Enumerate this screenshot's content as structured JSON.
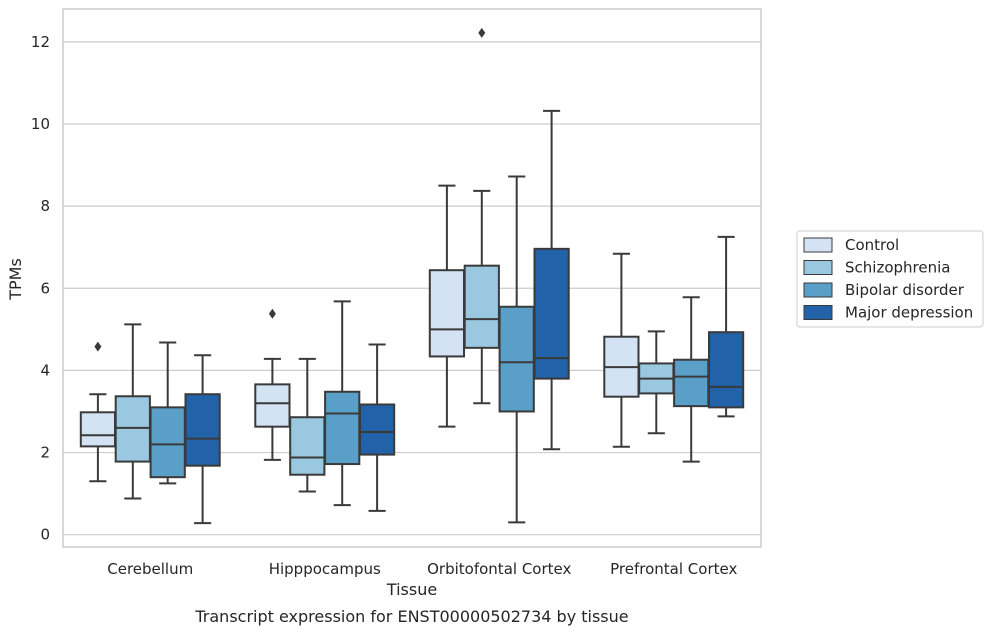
{
  "chart_data": {
    "type": "box",
    "xlabel": "Tissue",
    "ylabel": "TPMs",
    "caption": "Transcript expression for ENST00000502734 by tissue",
    "ylim": [
      -0.3,
      12.8
    ],
    "yticks": [
      0,
      2,
      4,
      6,
      8,
      10,
      12
    ],
    "grid": "horizontal",
    "legend_position": "right",
    "categories": [
      "Cerebellum",
      "Hipppocampus",
      "Orbitofontal Cortex",
      "Prefrontal Cortex"
    ],
    "series": [
      {
        "name": "Control",
        "color": "#d3e3f3",
        "boxes": [
          {
            "whislo": 1.3,
            "q1": 2.15,
            "med": 2.42,
            "q3": 2.98,
            "whishi": 3.42,
            "fliers": [
              4.58
            ]
          },
          {
            "whislo": 1.82,
            "q1": 2.63,
            "med": 3.2,
            "q3": 3.66,
            "whishi": 4.28,
            "fliers": [
              5.38
            ]
          },
          {
            "whislo": 2.63,
            "q1": 4.34,
            "med": 5.0,
            "q3": 6.44,
            "whishi": 8.5,
            "fliers": []
          },
          {
            "whislo": 2.14,
            "q1": 3.36,
            "med": 4.08,
            "q3": 4.82,
            "whishi": 6.84,
            "fliers": []
          }
        ]
      },
      {
        "name": "Schizophrenia",
        "color": "#9ac8e0",
        "boxes": [
          {
            "whislo": 0.88,
            "q1": 1.78,
            "med": 2.6,
            "q3": 3.37,
            "whishi": 5.12,
            "fliers": []
          },
          {
            "whislo": 1.05,
            "q1": 1.46,
            "med": 1.88,
            "q3": 2.86,
            "whishi": 4.28,
            "fliers": []
          },
          {
            "whislo": 3.2,
            "q1": 4.55,
            "med": 5.25,
            "q3": 6.55,
            "whishi": 8.37,
            "fliers": [
              12.22
            ]
          },
          {
            "whislo": 2.47,
            "q1": 3.44,
            "med": 3.8,
            "q3": 4.17,
            "whishi": 4.95,
            "fliers": []
          }
        ]
      },
      {
        "name": "Bipolar disorder",
        "color": "#5a9fc8",
        "boxes": [
          {
            "whislo": 1.25,
            "q1": 1.4,
            "med": 2.2,
            "q3": 3.1,
            "whishi": 4.68,
            "fliers": []
          },
          {
            "whislo": 0.72,
            "q1": 1.72,
            "med": 2.95,
            "q3": 3.48,
            "whishi": 5.68,
            "fliers": []
          },
          {
            "whislo": 0.3,
            "q1": 3.0,
            "med": 4.2,
            "q3": 5.55,
            "whishi": 8.72,
            "fliers": []
          },
          {
            "whislo": 1.78,
            "q1": 3.13,
            "med": 3.85,
            "q3": 4.26,
            "whishi": 5.78,
            "fliers": []
          }
        ]
      },
      {
        "name": "Major depression",
        "color": "#2262a8",
        "boxes": [
          {
            "whislo": 0.28,
            "q1": 1.68,
            "med": 2.34,
            "q3": 3.42,
            "whishi": 4.37,
            "fliers": []
          },
          {
            "whislo": 0.58,
            "q1": 1.95,
            "med": 2.5,
            "q3": 3.17,
            "whishi": 4.63,
            "fliers": []
          },
          {
            "whislo": 2.08,
            "q1": 3.8,
            "med": 4.3,
            "q3": 6.96,
            "whishi": 10.32,
            "fliers": []
          },
          {
            "whislo": 2.88,
            "q1": 3.1,
            "med": 3.6,
            "q3": 4.93,
            "whishi": 7.25,
            "fliers": []
          }
        ]
      }
    ]
  }
}
